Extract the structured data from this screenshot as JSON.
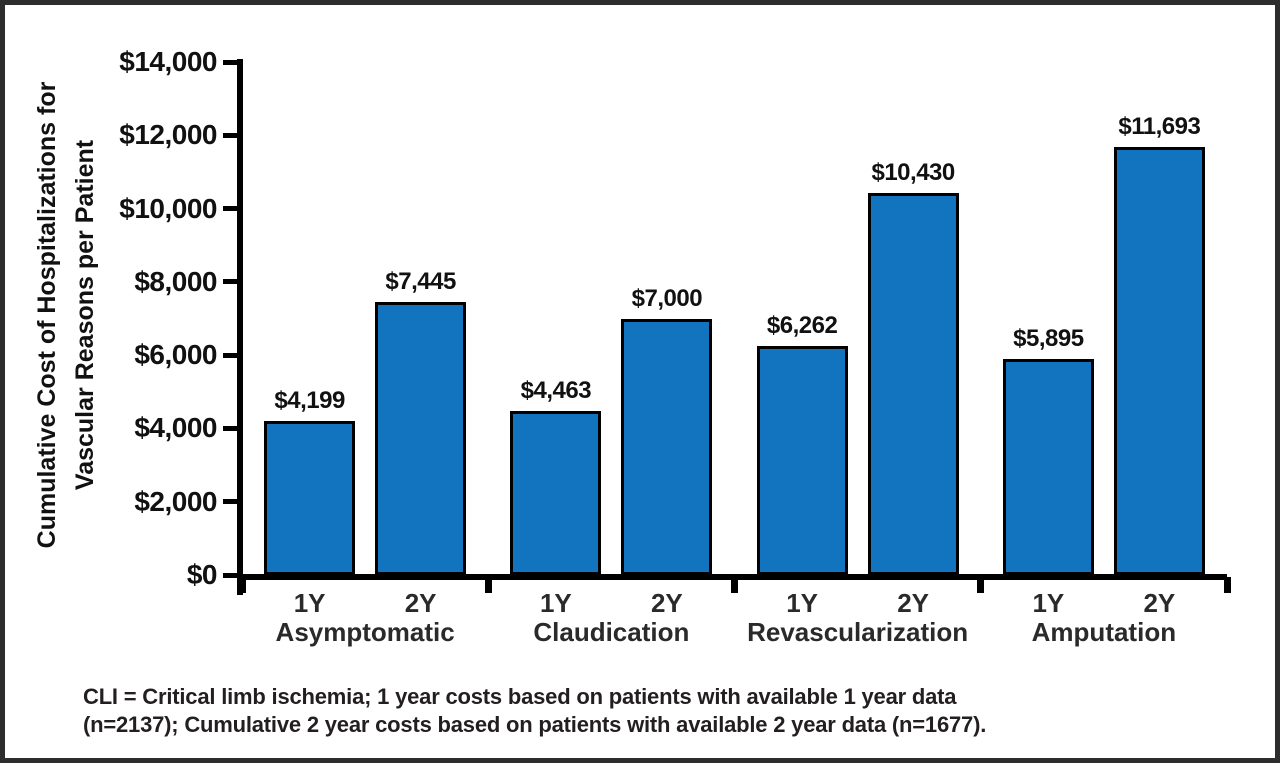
{
  "chart_data": {
    "type": "bar",
    "ylabel_line1": "Cumulative Cost of Hospitalizations for",
    "ylabel_line2": "Vascular Reasons per Patient",
    "ylim": [
      0,
      14000
    ],
    "ytick_step": 2000,
    "yticks": [
      {
        "value": 0,
        "label": "$0"
      },
      {
        "value": 2000,
        "label": "$2,000"
      },
      {
        "value": 4000,
        "label": "$4,000"
      },
      {
        "value": 6000,
        "label": "$6,000"
      },
      {
        "value": 8000,
        "label": "$8,000"
      },
      {
        "value": 10000,
        "label": "$10,000"
      },
      {
        "value": 12000,
        "label": "$12,000"
      },
      {
        "value": 14000,
        "label": "$14,000"
      }
    ],
    "categories": [
      "Asymptomatic",
      "Claudication",
      "Revascularization",
      "Amputation"
    ],
    "series": [
      {
        "name": "1Y",
        "values": [
          4199,
          4463,
          6262,
          5895
        ],
        "labels": [
          "$4,199",
          "$4,463",
          "$6,262",
          "$5,895"
        ]
      },
      {
        "name": "2Y",
        "values": [
          7445,
          7000,
          10430,
          11693
        ],
        "labels": [
          "$7,445",
          "$7,000",
          "$10,430",
          "$11,693"
        ]
      }
    ],
    "bar_color": "#1273BE",
    "bar_border_color": "#000000",
    "axis_color": "#000000",
    "grid": "off",
    "legend": "none",
    "title": ""
  },
  "footnote": {
    "line1": "CLI = Critical limb ischemia; 1 year costs based on patients with available 1 year data",
    "line2": "(n=2137); Cumulative 2 year costs based on patients with available 2 year data (n=1677)."
  }
}
